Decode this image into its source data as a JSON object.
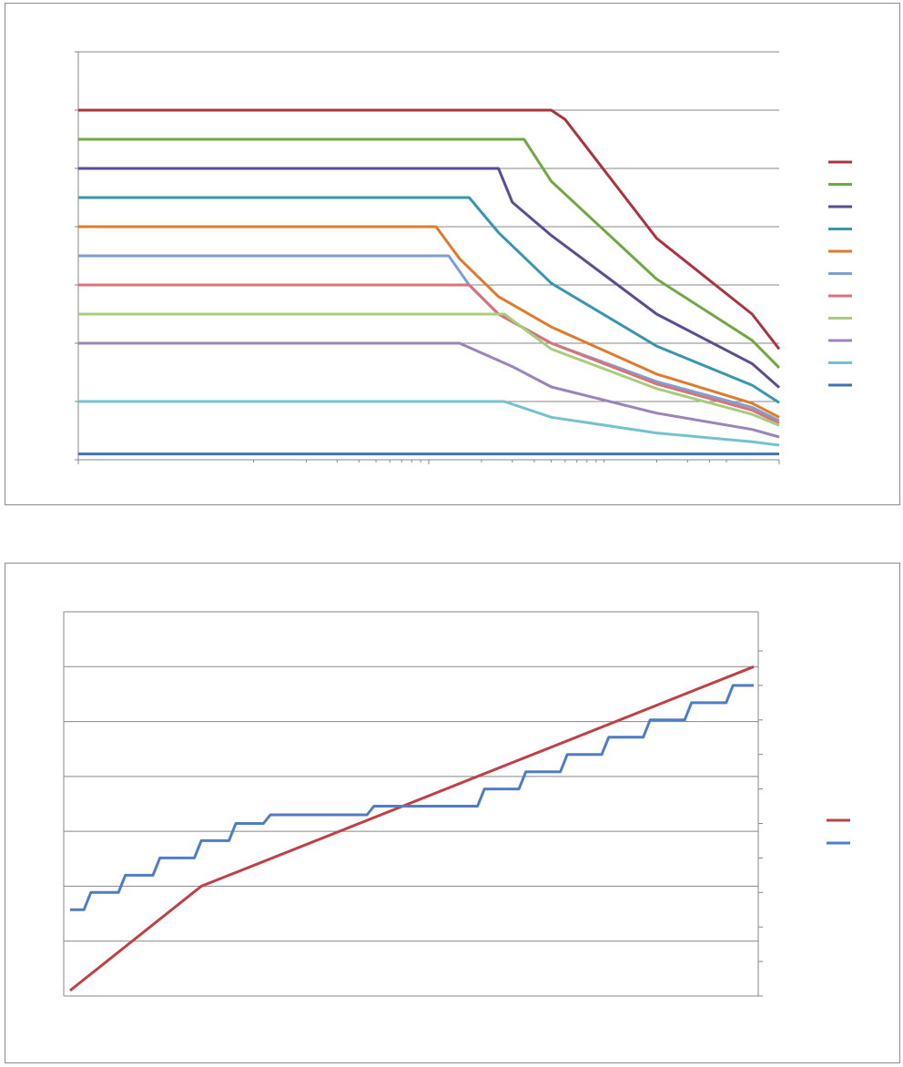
{
  "chart_data": [
    {
      "type": "line",
      "title": "",
      "xlabel": "",
      "ylabel": "",
      "x_scale": "log",
      "xlim": [
        1,
        10000
      ],
      "ylim": [
        0,
        700
      ],
      "y_gridlines": [
        0,
        100,
        200,
        300,
        400,
        500,
        600,
        700
      ],
      "x_major_ticks": [
        1,
        100,
        10000
      ],
      "x_minor_ticks": [
        10,
        20,
        30,
        40,
        50,
        60,
        70,
        80,
        90,
        200,
        300,
        400,
        500,
        600,
        700,
        800,
        900,
        1000,
        2000,
        3000,
        4000,
        5000
      ],
      "grid": true,
      "legend_position": "right",
      "series": [
        {
          "color": "#A8353E",
          "points": [
            [
              1,
              600
            ],
            [
              500,
              600
            ],
            [
              600,
              584
            ],
            [
              2000,
              380
            ],
            [
              7000,
              250
            ],
            [
              10000,
              190
            ]
          ]
        },
        {
          "color": "#72A844",
          "points": [
            [
              1,
              550
            ],
            [
              350,
              550
            ],
            [
              500,
              478
            ],
            [
              2000,
              310
            ],
            [
              7000,
              205
            ],
            [
              10000,
              158
            ]
          ]
        },
        {
          "color": "#5D4C8F",
          "points": [
            [
              1,
              500
            ],
            [
              250,
              500
            ],
            [
              300,
              442
            ],
            [
              500,
              385
            ],
            [
              2000,
              250
            ],
            [
              7000,
              165
            ],
            [
              10000,
              124
            ]
          ]
        },
        {
          "color": "#3A96AB",
          "points": [
            [
              1,
              450
            ],
            [
              170,
              450
            ],
            [
              250,
              390
            ],
            [
              500,
              303
            ],
            [
              2000,
              195
            ],
            [
              7000,
              128
            ],
            [
              10000,
              98
            ]
          ]
        },
        {
          "color": "#E07A2C",
          "points": [
            [
              1,
              400
            ],
            [
              110,
              400
            ],
            [
              150,
              345
            ],
            [
              250,
              280
            ],
            [
              500,
              228
            ],
            [
              2000,
              147
            ],
            [
              7000,
              97
            ],
            [
              10000,
              73
            ]
          ]
        },
        {
          "color": "#7E9FD2",
          "points": [
            [
              1,
              350
            ],
            [
              130,
              350
            ],
            [
              170,
              300
            ],
            [
              250,
              250
            ],
            [
              500,
              200
            ],
            [
              2000,
              134
            ],
            [
              7000,
              90
            ],
            [
              10000,
              67
            ]
          ]
        },
        {
          "color": "#D7737A",
          "points": [
            [
              1,
              300
            ],
            [
              170,
              300
            ],
            [
              250,
              250
            ],
            [
              500,
              200
            ],
            [
              2000,
              130
            ],
            [
              7000,
              85
            ],
            [
              10000,
              63
            ]
          ]
        },
        {
          "color": "#A9CC7C",
          "points": [
            [
              1,
              250
            ],
            [
              270,
              250
            ],
            [
              500,
              190
            ],
            [
              2000,
              122
            ],
            [
              7000,
              78
            ],
            [
              10000,
              59
            ]
          ]
        },
        {
          "color": "#9A84BB",
          "points": [
            [
              1,
              200
            ],
            [
              150,
              200
            ],
            [
              300,
              160
            ],
            [
              500,
              125
            ],
            [
              2000,
              80
            ],
            [
              7000,
              52
            ],
            [
              10000,
              39
            ]
          ]
        },
        {
          "color": "#75C2CF",
          "points": [
            [
              1,
              100
            ],
            [
              270,
              100
            ],
            [
              500,
              73
            ],
            [
              2000,
              46
            ],
            [
              7000,
              31
            ],
            [
              10000,
              25
            ]
          ]
        },
        {
          "color": "#4270B6",
          "points": [
            [
              1,
              10
            ],
            [
              10000,
              10
            ]
          ]
        }
      ]
    },
    {
      "type": "line",
      "title": "",
      "xlabel": "",
      "ylabel": "",
      "xlim": [
        0,
        100
      ],
      "ylim": [
        0,
        7
      ],
      "y_gridlines": [
        0,
        1,
        2,
        3,
        4,
        5,
        6,
        7
      ],
      "y2lim": [
        0,
        10
      ],
      "y2_ticks": [
        0,
        1,
        2,
        3,
        4,
        5,
        6,
        7,
        8,
        9,
        10
      ],
      "grid": true,
      "legend_position": "right",
      "series": [
        {
          "color": "#BE4146",
          "axis": "left",
          "points": [
            [
              1,
              0.1
            ],
            [
              20,
              2
            ],
            [
              100,
              6
            ]
          ]
        },
        {
          "color": "#4F7DC4",
          "axis": "right",
          "points": [
            [
              1,
              2.5
            ],
            [
              3,
              2.5
            ],
            [
              4,
              3
            ],
            [
              8,
              3
            ],
            [
              9,
              3.5
            ],
            [
              13,
              3.5
            ],
            [
              14,
              4
            ],
            [
              19,
              4
            ],
            [
              20,
              4.5
            ],
            [
              24,
              4.5
            ],
            [
              25,
              5
            ],
            [
              29,
              5
            ],
            [
              30,
              5.25
            ],
            [
              44,
              5.25
            ],
            [
              45,
              5.5
            ],
            [
              60,
              5.5
            ],
            [
              61,
              6
            ],
            [
              66,
              6
            ],
            [
              67,
              6.5
            ],
            [
              72,
              6.5
            ],
            [
              73,
              7
            ],
            [
              78,
              7
            ],
            [
              79,
              7.5
            ],
            [
              84,
              7.5
            ],
            [
              85,
              8
            ],
            [
              90,
              8
            ],
            [
              91,
              8.5
            ],
            [
              96,
              8.5
            ],
            [
              97,
              9
            ],
            [
              100,
              9
            ]
          ]
        }
      ]
    }
  ]
}
